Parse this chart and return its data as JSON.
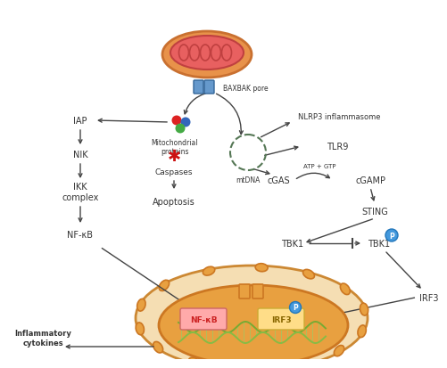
{
  "bg_color": "#ffffff",
  "text_color": "#333333",
  "arrow_color": "#444444",
  "mito_outer_color": "#E8924A",
  "mito_outer_edge": "#C97030",
  "mito_inner_color": "#E86060",
  "mito_inner_edge": "#C04040",
  "cristae_edge": "#C04040",
  "bax_color": "#6699CC",
  "bax_edge": "#336699",
  "dot_red": "#DD2222",
  "dot_blue": "#3366BB",
  "dot_green": "#44AA44",
  "asterisk_color": "#CC1111",
  "mtdna_edge": "#557755",
  "cell_outer_color": "#F5DEB3",
  "cell_outer_edge": "#CC8833",
  "cell_pore_color": "#E8A040",
  "cell_pore_edge": "#CC7722",
  "nucleus_color": "#E8A040",
  "nucleus_edge": "#CC7722",
  "nfkb_box_color": "#FFAAAA",
  "nfkb_box_edge": "#CC6666",
  "nfkb_text_color": "#CC2222",
  "irf3_box_color": "#FFDD88",
  "irf3_box_edge": "#CCAA33",
  "irf3_text_color": "#886600",
  "dna_color1": "#77AA33",
  "dna_color2": "#88BB44",
  "phospho_color": "#4499DD",
  "phospho_edge": "#2277BB",
  "labels": {
    "baxbak": "BAXBAK pore",
    "mito_proteins": "Mitochondrial\nproteins",
    "caspases": "Caspases",
    "apoptosis": "Apoptosis",
    "iap": "IAP",
    "nik": "NIK",
    "ikk": "IKK\ncomplex",
    "nfkb_out": "NF-κB",
    "nfkb_in": "NF-κB",
    "inflammatory": "Inflammatory\ncytokines",
    "nlrp3": "NLRP3 inflammasome",
    "tlr9": "TLR9",
    "mtdna": "mtDNA",
    "cgas": "cGAS",
    "cgamp": "cGAMP",
    "atp_gtp": "ATP + GTP",
    "sting": "STING",
    "tbk1": "TBK1",
    "tbk1p": "TBK1",
    "irf3_out": "IRF3",
    "irf3_in": "IRF3"
  }
}
